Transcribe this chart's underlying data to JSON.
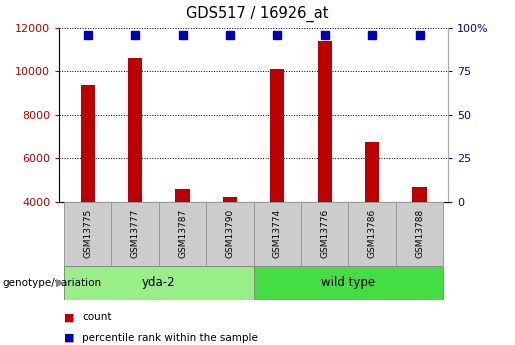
{
  "title": "GDS517 / 16926_at",
  "samples": [
    "GSM13775",
    "GSM13777",
    "GSM13787",
    "GSM13790",
    "GSM13774",
    "GSM13776",
    "GSM13786",
    "GSM13788"
  ],
  "counts": [
    9350,
    10620,
    4600,
    4200,
    10080,
    11400,
    6750,
    4700
  ],
  "percentile_ranks": [
    100,
    100,
    100,
    100,
    100,
    100,
    100,
    100
  ],
  "ylim_left": [
    4000,
    12000
  ],
  "ylim_right": [
    0,
    100
  ],
  "yticks_left": [
    4000,
    6000,
    8000,
    10000,
    12000
  ],
  "yticks_right": [
    0,
    25,
    50,
    75,
    100
  ],
  "bar_color": "#bb0000",
  "percentile_color": "#0000bb",
  "groups": [
    {
      "label": "yda-2",
      "start": 0,
      "end": 4,
      "color": "#99ee88"
    },
    {
      "label": "wild type",
      "start": 4,
      "end": 8,
      "color": "#44dd44"
    }
  ],
  "group_label_prefix": "genotype/variation",
  "legend_count_label": "count",
  "legend_perc_label": "percentile rank within the sample",
  "tick_label_box_color": "#cccccc",
  "tick_label_box_border": "#999999",
  "bar_width": 0.3,
  "perc_marker_size": 6
}
